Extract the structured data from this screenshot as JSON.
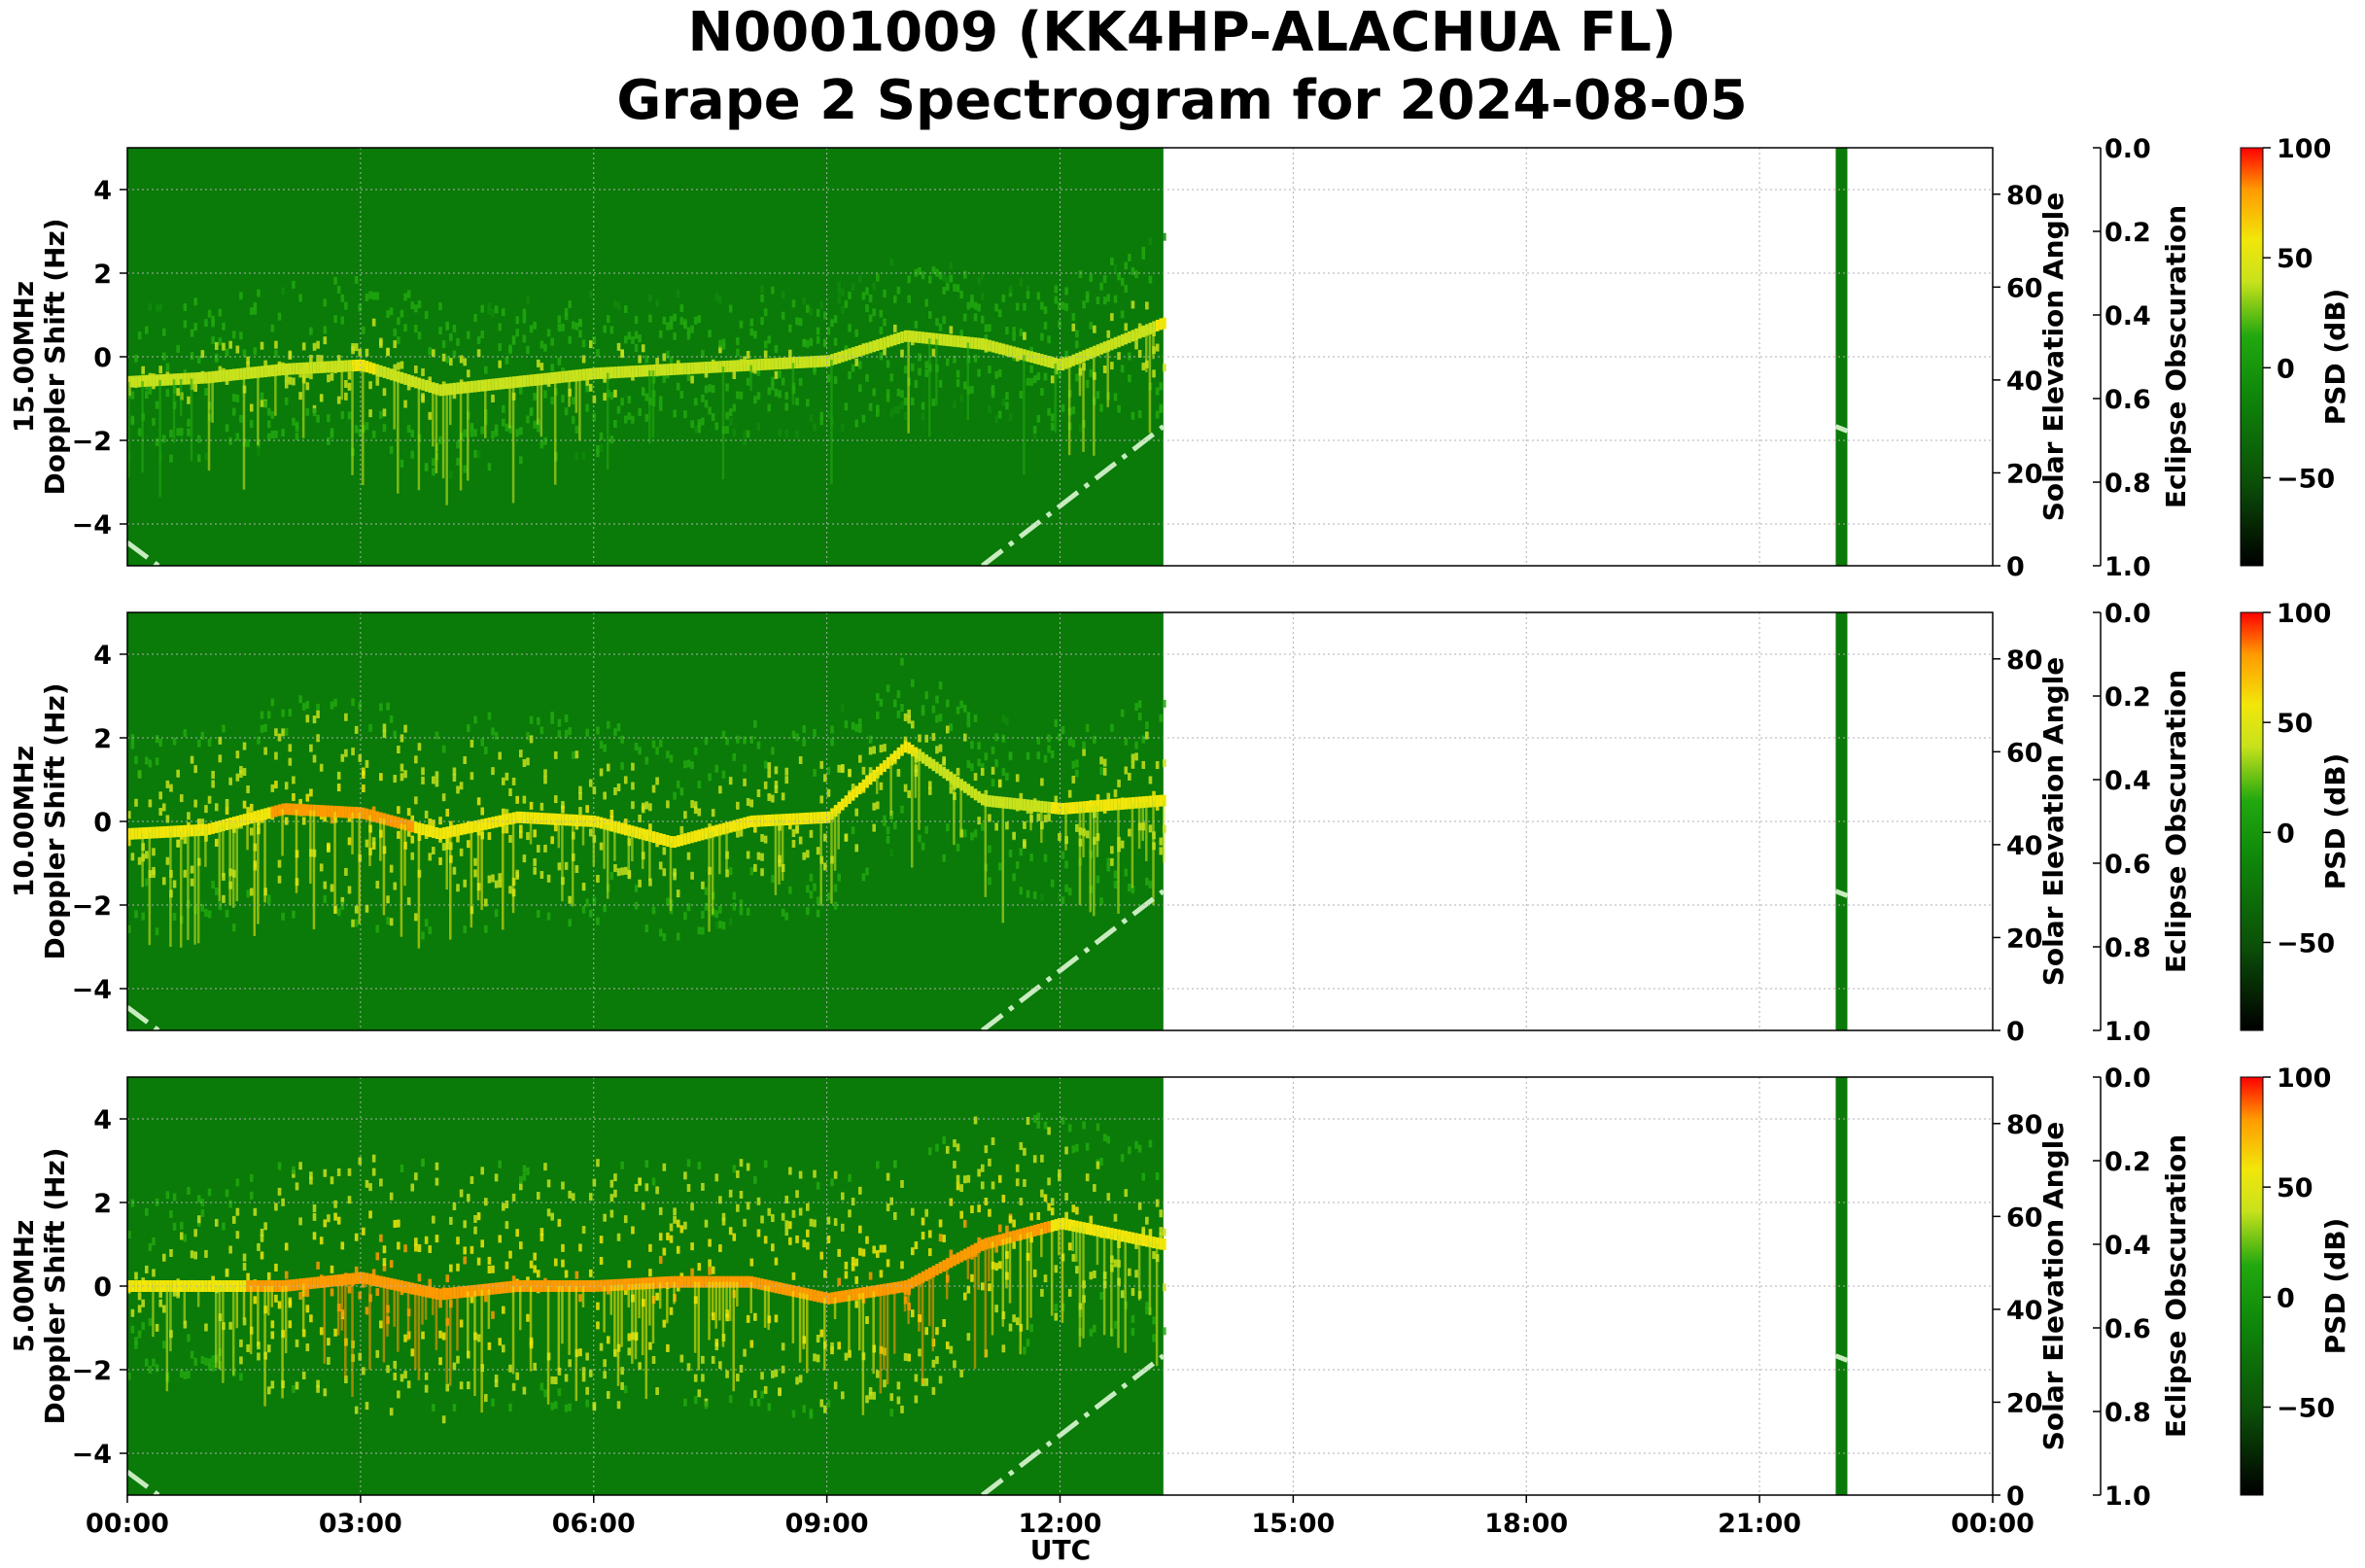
{
  "figure": {
    "title_line1": "N0001009 (KK4HP-ALACHUA FL)",
    "title_line2": "Grape 2 Spectrogram for 2024-08-05",
    "xlabel": "UTC",
    "x_tick_labels": [
      "00:00",
      "03:00",
      "06:00",
      "09:00",
      "12:00",
      "15:00",
      "18:00",
      "21:00",
      "00:00"
    ]
  },
  "colors": {
    "background_green": "#0a7a08",
    "colormap": [
      "#000000",
      "#0b4f08",
      "#0f8a0a",
      "#22a80f",
      "#c8e21c",
      "#f2e60a",
      "#ff9a00",
      "#ff0000"
    ],
    "solar_line": "#c8ecc0",
    "grid": "#b0b0b0"
  },
  "chart_data": [
    {
      "type": "heatmap",
      "frequency_label": "15.00MHz",
      "ylabel": "Doppler Shift (Hz)",
      "ylim": [
        -5,
        5
      ],
      "y_ticks": [
        4,
        2,
        0,
        -2,
        -4
      ],
      "x_range_hours": [
        0,
        24
      ],
      "data_coverage_hours": [
        [
          0,
          13.33
        ],
        [
          21.98,
          22.13
        ]
      ],
      "signal_trace": {
        "x_hours": [
          0,
          1,
          2,
          3,
          4,
          5,
          6,
          7,
          8,
          9,
          10,
          11,
          12,
          13.3
        ],
        "doppler_hz": [
          -0.6,
          -0.5,
          -0.3,
          -0.2,
          -0.8,
          -0.6,
          -0.4,
          -0.3,
          -0.2,
          -0.1,
          0.5,
          0.3,
          -0.2,
          0.8
        ],
        "relative_level_db": [
          25,
          30,
          35,
          40,
          35,
          30,
          30,
          25,
          25,
          20,
          30,
          20,
          30,
          40
        ]
      },
      "solar_elevation_axis": {
        "label": "Solar Elevation Angle",
        "ylim": [
          0,
          90
        ],
        "ticks": [
          80,
          60,
          40,
          20,
          0
        ]
      },
      "solar_elevation_deg": {
        "x_hours": [
          0,
          0.4,
          11,
          13.33,
          21.98,
          22.13
        ],
        "values": [
          5,
          0,
          0,
          30,
          30,
          29
        ]
      },
      "eclipse_axis": {
        "label": "Eclipse Obscuration",
        "ylim": [
          1.0,
          0.0
        ],
        "ticks": [
          "0.0",
          "0.2",
          "0.4",
          "0.6",
          "0.8",
          "1.0"
        ]
      },
      "colorbar": {
        "label": "PSD (dB)",
        "range": [
          -90,
          100
        ],
        "ticks": [
          {
            "v": 100,
            "label": "100"
          },
          {
            "v": 50,
            "label": "50"
          },
          {
            "v": 0,
            "label": "0"
          },
          {
            "v": -50,
            "label": "−50"
          }
        ]
      }
    },
    {
      "type": "heatmap",
      "frequency_label": "10.00MHz",
      "ylabel": "Doppler Shift (Hz)",
      "ylim": [
        -5,
        5
      ],
      "y_ticks": [
        4,
        2,
        0,
        -2,
        -4
      ],
      "x_range_hours": [
        0,
        24
      ],
      "data_coverage_hours": [
        [
          0,
          13.33
        ],
        [
          21.98,
          22.13
        ]
      ],
      "signal_trace": {
        "x_hours": [
          0,
          1,
          2,
          3,
          4,
          5,
          6,
          7,
          8,
          9,
          10,
          11,
          12,
          13.3
        ],
        "doppler_hz": [
          -0.3,
          -0.2,
          0.3,
          0.2,
          -0.3,
          0.1,
          0.0,
          -0.5,
          0.0,
          0.1,
          1.8,
          0.5,
          0.3,
          0.5
        ],
        "relative_level_db": [
          45,
          50,
          60,
          65,
          55,
          55,
          50,
          45,
          45,
          45,
          40,
          35,
          40,
          50
        ]
      },
      "solar_elevation_axis": {
        "label": "Solar Elevation Angle",
        "ylim": [
          0,
          90
        ],
        "ticks": [
          80,
          60,
          40,
          20,
          0
        ]
      },
      "solar_elevation_deg": {
        "x_hours": [
          0,
          0.4,
          11,
          13.33,
          21.98,
          22.13
        ],
        "values": [
          5,
          0,
          0,
          30,
          30,
          29
        ]
      },
      "eclipse_axis": {
        "label": "Eclipse Obscuration",
        "ylim": [
          1.0,
          0.0
        ],
        "ticks": [
          "0.0",
          "0.2",
          "0.4",
          "0.6",
          "0.8",
          "1.0"
        ]
      },
      "colorbar": {
        "label": "PSD (dB)",
        "range": [
          -90,
          100
        ],
        "ticks": [
          {
            "v": 100,
            "label": "100"
          },
          {
            "v": 50,
            "label": "50"
          },
          {
            "v": 0,
            "label": "0"
          },
          {
            "v": -50,
            "label": "−50"
          }
        ]
      }
    },
    {
      "type": "heatmap",
      "frequency_label": "5.00MHz",
      "ylabel": "Doppler Shift (Hz)",
      "ylim": [
        -5,
        5
      ],
      "y_ticks": [
        4,
        2,
        0,
        -2,
        -4
      ],
      "x_range_hours": [
        0,
        24
      ],
      "data_coverage_hours": [
        [
          0,
          13.33
        ],
        [
          21.98,
          22.13
        ]
      ],
      "signal_trace": {
        "x_hours": [
          0,
          1,
          2,
          3,
          4,
          5,
          6,
          7,
          8,
          9,
          10,
          11,
          12,
          13.3
        ],
        "doppler_hz": [
          0.0,
          0.0,
          0.0,
          0.2,
          -0.2,
          0.0,
          0.0,
          0.1,
          0.1,
          -0.3,
          0.0,
          1.0,
          1.5,
          1.0
        ],
        "relative_level_db": [
          40,
          45,
          70,
          80,
          75,
          70,
          70,
          70,
          70,
          70,
          75,
          75,
          55,
          45
        ]
      },
      "solar_elevation_axis": {
        "label": "Solar Elevation Angle",
        "ylim": [
          0,
          90
        ],
        "ticks": [
          80,
          60,
          40,
          20,
          0
        ]
      },
      "solar_elevation_deg": {
        "x_hours": [
          0,
          0.4,
          11,
          13.33,
          21.98,
          22.13
        ],
        "values": [
          5,
          0,
          0,
          30,
          30,
          29
        ]
      },
      "eclipse_axis": {
        "label": "Eclipse Obscuration",
        "ylim": [
          1.0,
          0.0
        ],
        "ticks": [
          "0.0",
          "0.2",
          "0.4",
          "0.6",
          "0.8",
          "1.0"
        ]
      },
      "colorbar": {
        "label": "PSD (dB)",
        "range": [
          -90,
          100
        ],
        "ticks": [
          {
            "v": 100,
            "label": "100"
          },
          {
            "v": 50,
            "label": "50"
          },
          {
            "v": 0,
            "label": "0"
          },
          {
            "v": -50,
            "label": "−50"
          }
        ]
      }
    }
  ]
}
